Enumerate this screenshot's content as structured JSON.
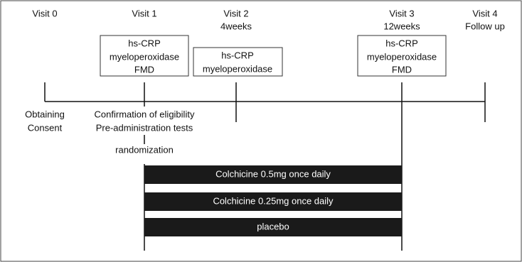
{
  "visits": [
    {
      "label": "Visit 0"
    },
    {
      "label": "Visit 1"
    },
    {
      "label": "Visit 2",
      "sublabel": "4weeks"
    },
    {
      "label": "Visit 3",
      "sublabel": "12weeks"
    },
    {
      "label": "Visit 4",
      "sublabel": "Follow up"
    }
  ],
  "boxes": [
    {
      "lines": [
        "hs-CRP",
        "myeloperoxidase",
        "FMD"
      ]
    },
    {
      "lines": [
        "hs-CRP",
        "myeloperoxidase"
      ]
    },
    {
      "lines": [
        "hs-CRP",
        "myeloperoxidase",
        "FMD"
      ]
    }
  ],
  "notes": {
    "visit0": [
      "Obtaining",
      "Consent"
    ],
    "visit1": [
      "Confirmation of eligibility",
      "Pre-administration tests"
    ],
    "randomization": "randomization"
  },
  "arms": [
    "Colchicine 0.5mg once daily",
    "Colchicine 0.25mg once daily",
    "placebo"
  ]
}
